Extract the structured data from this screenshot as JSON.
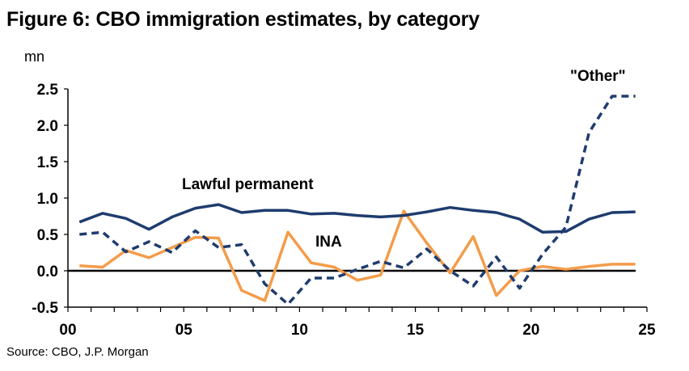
{
  "chart_data": {
    "type": "line",
    "title": "Figure 6: CBO immigration estimates, by category",
    "ylabel": "mn",
    "source": "Source: CBO, J.P. Morgan",
    "xlim": [
      0,
      25
    ],
    "ylim": [
      -0.5,
      2.5
    ],
    "x_ticks": [
      0,
      5,
      10,
      15,
      20,
      25
    ],
    "x_tick_labels": [
      "00",
      "05",
      "10",
      "15",
      "20",
      "25"
    ],
    "y_ticks": [
      -0.5,
      0,
      0.5,
      1,
      1.5,
      2,
      2.5
    ],
    "y_tick_labels": [
      "-0.5",
      "0.0",
      "0.5",
      "1.0",
      "1.5",
      "2.0",
      "2.5"
    ],
    "x": [
      0.5,
      1.5,
      2.5,
      3.5,
      4.5,
      5.5,
      6.5,
      7.5,
      8.5,
      9.5,
      10.5,
      11.5,
      12.5,
      13.5,
      14.5,
      15.5,
      16.5,
      17.5,
      18.5,
      19.5,
      20.5,
      21.5,
      22.5,
      23.5,
      24.5
    ],
    "series": [
      {
        "name": "Lawful permanent",
        "color": "#1f3c6e",
        "style": "solid",
        "values": [
          0.67,
          0.79,
          0.72,
          0.57,
          0.74,
          0.86,
          0.91,
          0.8,
          0.83,
          0.83,
          0.78,
          0.79,
          0.76,
          0.74,
          0.76,
          0.81,
          0.87,
          0.83,
          0.8,
          0.71,
          0.53,
          0.54,
          0.71,
          0.8,
          0.81
        ]
      },
      {
        "name": "INA",
        "color": "#f39c4a",
        "style": "solid",
        "values": [
          0.07,
          0.05,
          0.28,
          0.18,
          0.32,
          0.46,
          0.45,
          -0.27,
          -0.41,
          0.53,
          0.11,
          0.05,
          -0.13,
          -0.06,
          0.82,
          0.38,
          -0.03,
          0.47,
          -0.34,
          0.0,
          0.06,
          0.02,
          0.06,
          0.09,
          0.09
        ]
      },
      {
        "name": "\"Other\"",
        "color": "#1f3c6e",
        "style": "dashed",
        "values": [
          0.5,
          0.53,
          0.26,
          0.4,
          0.25,
          0.55,
          0.32,
          0.36,
          -0.18,
          -0.46,
          -0.1,
          -0.1,
          0.02,
          0.13,
          0.04,
          0.3,
          0.0,
          -0.21,
          0.19,
          -0.24,
          0.23,
          0.6,
          1.9,
          2.4,
          2.4
        ]
      }
    ],
    "annotations": [
      {
        "text": "Lawful permanent",
        "series": 0
      },
      {
        "text": "INA",
        "series": 1
      },
      {
        "text": "\"Other\"",
        "series": 2
      }
    ],
    "zero_line": true,
    "grid": false,
    "legend": "none"
  }
}
